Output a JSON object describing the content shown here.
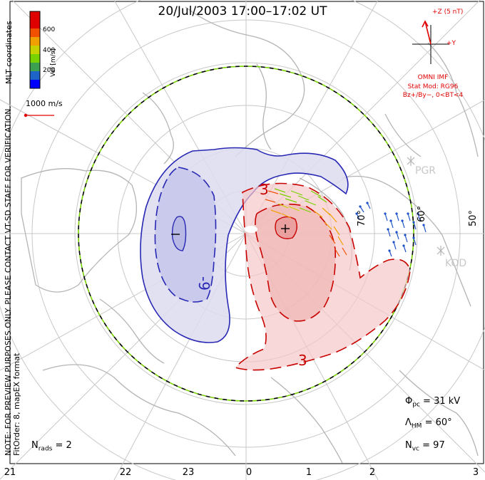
{
  "title": "20/Jul/2003 17:00–17:02 UT",
  "note": "NOTE: FOR PREVIEW PURPOSES ONLY. PLEASE CONTACT VT-SD STAFF FOR VERIFICATION.",
  "fit_info": "FitOrder: 8, mapEX format",
  "coords": "MLT coordinates",
  "colorbar": {
    "unit": "Vel [m/s]",
    "labels": [
      "600",
      "400",
      "200"
    ],
    "colors": [
      "#0000ff",
      "#1e78c8",
      "#3ca050",
      "#78d200",
      "#c8d200",
      "#f0a000",
      "#f05000",
      "#e00000"
    ]
  },
  "vector_scale": "1000 m/s",
  "imf": {
    "z_label": "+Z (5 nT)",
    "y_label": "+Y",
    "source": "OMNI IMF",
    "model": "Stat Mod: RG96",
    "condition": "Bz+/By−, 0<BT<4"
  },
  "stats": {
    "phi_label": "Φ",
    "phi_sub": "pc",
    "phi_value": " = 31 kV",
    "lambda_label": "Λ",
    "lambda_sub": "HM",
    "lambda_value": " = 60°",
    "nvc_label": "N",
    "nvc_sub": "vc",
    "nvc_value": " = 97",
    "nrads_label": "N",
    "nrads_sub": "rads",
    "nrads_value": " = 2"
  },
  "mlt_ticks": [
    "21",
    "22",
    "23",
    "0",
    "1",
    "2",
    "3"
  ],
  "lat_labels": [
    "70°",
    "60°",
    "50°"
  ],
  "stations": [
    "PGR",
    "KOD"
  ],
  "contours": {
    "neg_label_1": "-9",
    "pos_label_1": "3",
    "pos_label_2": "3",
    "min_marker": "−",
    "max_marker": "+"
  }
}
